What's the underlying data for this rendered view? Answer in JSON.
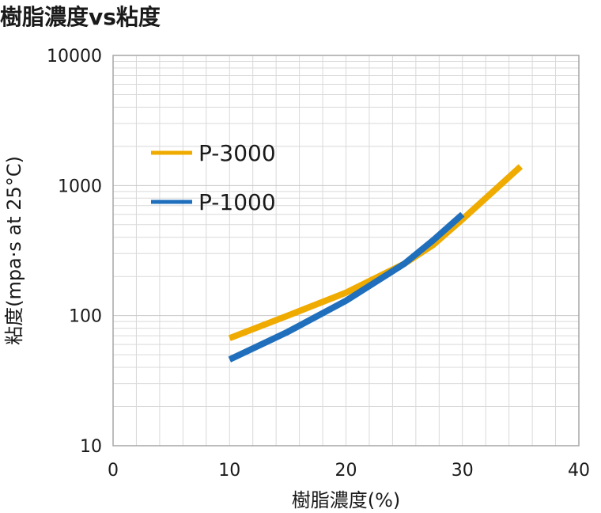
{
  "chart_data": {
    "type": "line",
    "title": "樹脂濃度vs粘度",
    "xlabel": "樹脂濃度(%)",
    "ylabel": "粘度(mpa·s at 25°C)",
    "xlim": [
      0,
      40
    ],
    "ylim": [
      10,
      10000
    ],
    "yscale": "log",
    "x_ticks": [
      "0",
      "10",
      "20",
      "30",
      "40"
    ],
    "y_ticks": [
      "10",
      "100",
      "1000",
      "10000"
    ],
    "grid": true,
    "legend_position": "top-left",
    "series": [
      {
        "name": "P-3000",
        "color": "#f0ab00",
        "points": [
          [
            10,
            67
          ],
          [
            15,
            100
          ],
          [
            20,
            150
          ],
          [
            25,
            250
          ],
          [
            27.5,
            350
          ],
          [
            30,
            550
          ],
          [
            35,
            1400
          ]
        ]
      },
      {
        "name": "P-1000",
        "color": "#1f6fbd",
        "points": [
          [
            10,
            46
          ],
          [
            15,
            75
          ],
          [
            20,
            130
          ],
          [
            25,
            250
          ],
          [
            27.5,
            380
          ],
          [
            30,
            600
          ]
        ]
      }
    ]
  }
}
